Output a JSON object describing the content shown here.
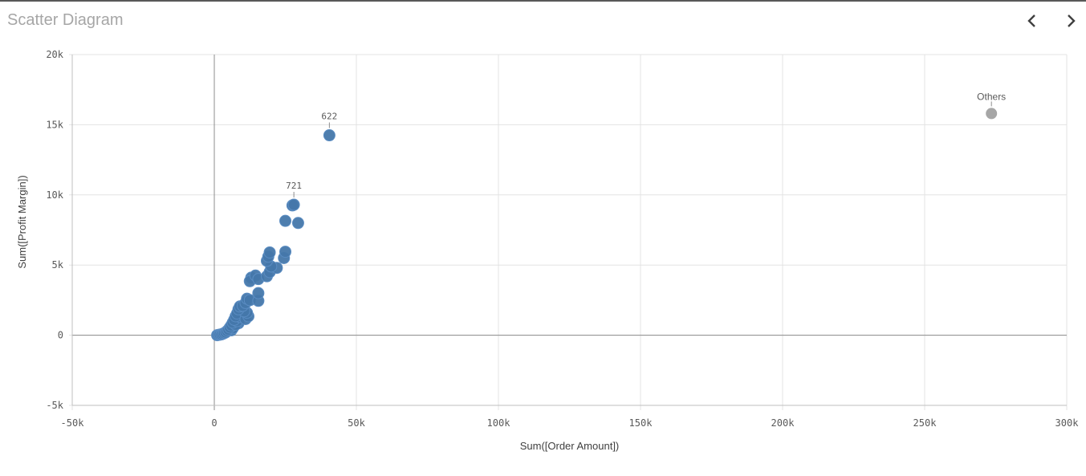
{
  "title": "Scatter Diagram",
  "nav": {
    "prev_icon": "chevron-left-icon",
    "next_icon": "chevron-right-icon"
  },
  "colors": {
    "series": "#4477aa",
    "others": "#a6a6a6"
  },
  "chart_data": {
    "type": "scatter",
    "xlabel": "Sum([Order Amount])",
    "ylabel": "Sum([Profit Margin])",
    "xlim": [
      -50000,
      300000
    ],
    "ylim": [
      -5000,
      20000
    ],
    "x_ticks": [
      -50000,
      0,
      50000,
      100000,
      150000,
      200000,
      250000,
      300000
    ],
    "x_tick_labels": [
      "-50k",
      "0",
      "50k",
      "100k",
      "150k",
      "200k",
      "250k",
      "300k"
    ],
    "y_ticks": [
      -5000,
      0,
      5000,
      10000,
      15000,
      20000
    ],
    "y_tick_labels": [
      "-5k",
      "0",
      "5k",
      "10k",
      "15k",
      "20k"
    ],
    "grid": true,
    "series": [
      {
        "points": [
          {
            "x": 40500,
            "y": 14250,
            "label": "622"
          },
          {
            "x": 28000,
            "y": 9300,
            "label": "721"
          },
          {
            "x": 27500,
            "y": 9250
          },
          {
            "x": 29500,
            "y": 8000
          },
          {
            "x": 25000,
            "y": 8150
          },
          {
            "x": 25000,
            "y": 5950
          },
          {
            "x": 24500,
            "y": 5500
          },
          {
            "x": 19500,
            "y": 5900
          },
          {
            "x": 19000,
            "y": 5600
          },
          {
            "x": 18500,
            "y": 5300
          },
          {
            "x": 20000,
            "y": 4900
          },
          {
            "x": 22000,
            "y": 4800
          },
          {
            "x": 19500,
            "y": 4500
          },
          {
            "x": 18500,
            "y": 4200
          },
          {
            "x": 15500,
            "y": 4000
          },
          {
            "x": 14500,
            "y": 4250
          },
          {
            "x": 12500,
            "y": 3850
          },
          {
            "x": 13000,
            "y": 4100
          },
          {
            "x": 15500,
            "y": 3000
          },
          {
            "x": 15500,
            "y": 2450
          },
          {
            "x": 12500,
            "y": 2500
          },
          {
            "x": 11500,
            "y": 2600
          },
          {
            "x": 11000,
            "y": 2300
          },
          {
            "x": 10000,
            "y": 2100
          },
          {
            "x": 9000,
            "y": 2050
          },
          {
            "x": 8500,
            "y": 1850
          },
          {
            "x": 10500,
            "y": 1700
          },
          {
            "x": 11500,
            "y": 1600
          },
          {
            "x": 12000,
            "y": 1350
          },
          {
            "x": 11000,
            "y": 1150
          },
          {
            "x": 8000,
            "y": 1550
          },
          {
            "x": 7500,
            "y": 1350
          },
          {
            "x": 9000,
            "y": 1300
          },
          {
            "x": 7000,
            "y": 1100
          },
          {
            "x": 8000,
            "y": 1000
          },
          {
            "x": 6500,
            "y": 900
          },
          {
            "x": 7500,
            "y": 750
          },
          {
            "x": 6000,
            "y": 700
          },
          {
            "x": 8500,
            "y": 850
          },
          {
            "x": 5500,
            "y": 550
          },
          {
            "x": 6500,
            "y": 500
          },
          {
            "x": 5000,
            "y": 400
          },
          {
            "x": 4500,
            "y": 300
          },
          {
            "x": 6000,
            "y": 350
          },
          {
            "x": 4000,
            "y": 200
          },
          {
            "x": 3500,
            "y": 150
          },
          {
            "x": 3000,
            "y": 100
          },
          {
            "x": 2500,
            "y": 60
          },
          {
            "x": 2000,
            "y": 40
          },
          {
            "x": 1500,
            "y": 20
          },
          {
            "x": 1000,
            "y": 0
          }
        ]
      },
      {
        "name": "Others",
        "points": [
          {
            "x": 273500,
            "y": 15800,
            "label": "Others"
          }
        ]
      }
    ]
  }
}
